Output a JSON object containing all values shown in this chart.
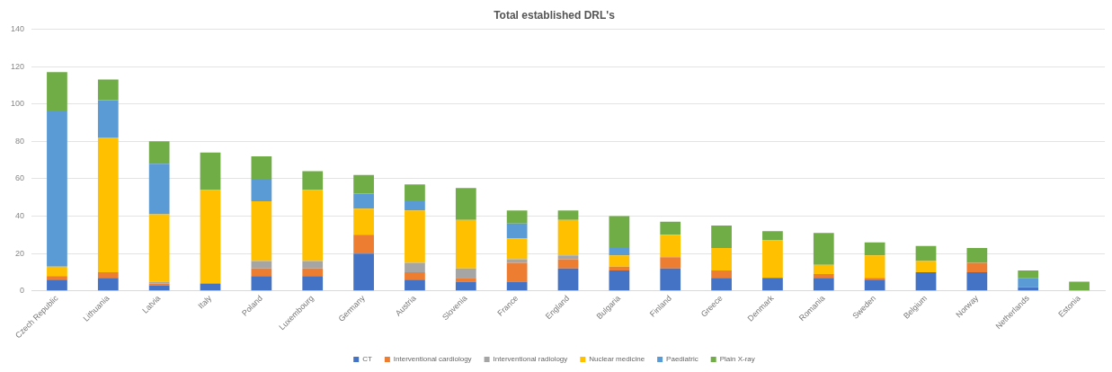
{
  "chart_data": {
    "type": "bar",
    "title": "Total established DRL's",
    "stacked": true,
    "grid": "y",
    "legend": "bottom",
    "categories": [
      "Czech Republic",
      "Lithuania",
      "Latvia",
      "Italy",
      "Poland",
      "Luxembourg",
      "Germany",
      "Austria",
      "Slovenia",
      "France",
      "England",
      "Bulgaria",
      "Finland",
      "Greece",
      "Denmark",
      "Romania",
      "Sweden",
      "Belgium",
      "Norway",
      "Netherlands",
      "Estonia"
    ],
    "ylim": [
      0,
      140
    ],
    "yticks": [
      0,
      20,
      40,
      60,
      80,
      100,
      120,
      140
    ],
    "series": [
      {
        "name": "CT",
        "color": "#4472c4",
        "values": [
          6,
          7,
          3,
          4,
          8,
          8,
          20,
          6,
          5,
          5,
          12,
          11,
          12,
          7,
          7,
          7,
          6,
          10,
          10,
          2,
          0
        ]
      },
      {
        "name": "Interventional cardiology",
        "color": "#ed7d31",
        "values": [
          2,
          3,
          1,
          0,
          4,
          4,
          10,
          4,
          2,
          10,
          5,
          2,
          6,
          4,
          0,
          2,
          1,
          0,
          5,
          0,
          0
        ]
      },
      {
        "name": "Interventional radiology",
        "color": "#a5a5a5",
        "values": [
          0,
          0,
          1,
          0,
          4,
          4,
          0,
          5,
          5,
          2,
          2,
          0,
          0,
          0,
          0,
          0,
          0,
          0,
          0,
          0,
          0
        ]
      },
      {
        "name": "Nuclear medicine",
        "color": "#ffc000",
        "values": [
          5,
          72,
          36,
          50,
          32,
          38,
          14,
          28,
          26,
          11,
          19,
          6,
          12,
          12,
          20,
          5,
          12,
          6,
          0,
          0,
          0
        ]
      },
      {
        "name": "Paediatric",
        "color": "#5b9bd5",
        "values": [
          83,
          20,
          27,
          0,
          12,
          0,
          8,
          5,
          0,
          8,
          0,
          4,
          0,
          0,
          0,
          0,
          0,
          0,
          0,
          5,
          0
        ]
      },
      {
        "name": "Plain X-ray",
        "color": "#70ad47",
        "values": [
          21,
          11,
          12,
          20,
          12,
          10,
          10,
          9,
          17,
          7,
          5,
          17,
          7,
          12,
          5,
          17,
          7,
          8,
          8,
          4,
          5
        ]
      }
    ]
  }
}
